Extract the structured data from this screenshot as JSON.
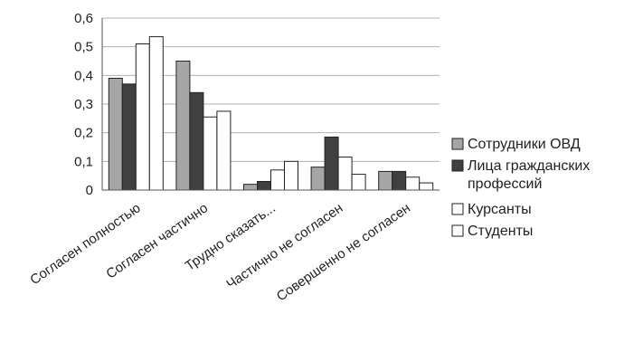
{
  "chart_data": {
    "type": "bar",
    "title": "",
    "xlabel": "",
    "ylabel": "",
    "categories": [
      "Согласен полностью",
      "Согласен частично",
      "Трудно сказать...",
      "Частично не согласен",
      "Совершенно не согласен"
    ],
    "series": [
      {
        "name": "Сотрудники ОВД",
        "values": [
          0.39,
          0.45,
          0.02,
          0.08,
          0.065
        ],
        "color": "#a6a6a6"
      },
      {
        "name": "Лица гражданских профессий",
        "values": [
          0.37,
          0.34,
          0.03,
          0.185,
          0.065
        ],
        "color": "#404040"
      },
      {
        "name": "Курсанты",
        "values": [
          0.51,
          0.255,
          0.07,
          0.115,
          0.045
        ],
        "color": "#ffffff"
      },
      {
        "name": "Студенты",
        "values": [
          0.535,
          0.275,
          0.1,
          0.055,
          0.025
        ],
        "color": "#ffffff"
      }
    ],
    "ylim": [
      0,
      0.6
    ],
    "yticks": [
      0,
      0.1,
      0.2,
      0.3,
      0.4,
      0.5,
      0.6
    ],
    "ytick_labels": [
      "0",
      "0,1",
      "0,2",
      "0,3",
      "0,4",
      "0,5",
      "0,6"
    ],
    "grid": true,
    "legend_position": "right",
    "legend_labels": [
      [
        "Сотрудники ОВД"
      ],
      [
        "Лица гражданских",
        "профессий"
      ],
      [
        "Курсанты"
      ],
      [
        "Студенты"
      ]
    ]
  }
}
